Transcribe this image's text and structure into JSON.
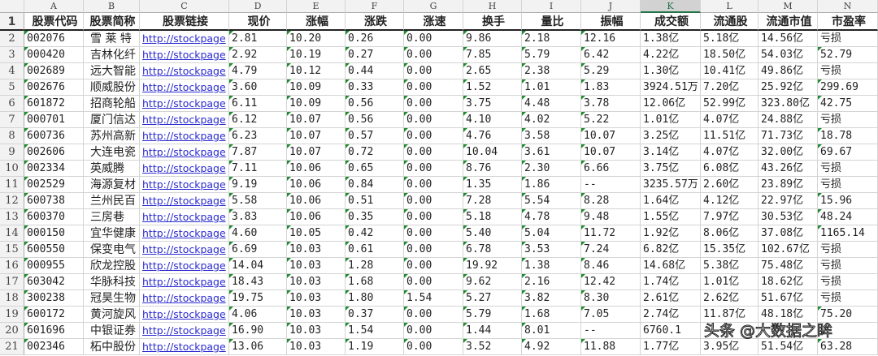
{
  "columns": [
    "A",
    "B",
    "C",
    "D",
    "E",
    "F",
    "G",
    "H",
    "I",
    "J",
    "K",
    "L",
    "M",
    "N"
  ],
  "selected_column": "K",
  "headers": [
    "股票代码",
    "股票简称",
    "股票链接",
    "现价",
    "涨幅",
    "涨跌",
    "涨速",
    "换手",
    "量比",
    "振幅",
    "成交额",
    "流通股",
    "流通市值",
    "市盈率"
  ],
  "rows": [
    [
      "002076",
      "雪 莱 特",
      "http://stockpage",
      "2.81",
      "10.20",
      "0.26",
      "0.00",
      "9.86",
      "2.18",
      "12.16",
      "1.38亿",
      "5.18亿",
      "14.56亿",
      "亏损"
    ],
    [
      "000420",
      "吉林化纤",
      "http://stockpage",
      "2.92",
      "10.19",
      "0.27",
      "0.00",
      "7.85",
      "5.79",
      "6.42",
      "4.22亿",
      "18.50亿",
      "54.03亿",
      "52.79"
    ],
    [
      "002689",
      "远大智能",
      "http://stockpage",
      "4.79",
      "10.12",
      "0.44",
      "0.00",
      "2.65",
      "2.38",
      "5.29",
      "1.30亿",
      "10.41亿",
      "49.86亿",
      "亏损"
    ],
    [
      "002676",
      "顺威股份",
      "http://stockpage",
      "3.60",
      "10.09",
      "0.33",
      "0.00",
      "1.52",
      "1.01",
      "1.83",
      "3924.51万",
      "7.20亿",
      "25.92亿",
      "299.69"
    ],
    [
      "601872",
      "招商轮船",
      "http://stockpage",
      "6.11",
      "10.09",
      "0.56",
      "0.00",
      "3.75",
      "4.48",
      "3.78",
      "12.06亿",
      "52.99亿",
      "323.80亿",
      "42.75"
    ],
    [
      "000701",
      "厦门信达",
      "http://stockpage",
      "6.12",
      "10.07",
      "0.56",
      "0.00",
      "4.10",
      "4.02",
      "5.22",
      "1.01亿",
      "4.07亿",
      "24.88亿",
      "亏损"
    ],
    [
      "600736",
      "苏州高新",
      "http://stockpage",
      "6.23",
      "10.07",
      "0.57",
      "0.00",
      "4.76",
      "3.58",
      "10.07",
      "3.25亿",
      "11.51亿",
      "71.73亿",
      "18.78"
    ],
    [
      "002606",
      "大连电瓷",
      "http://stockpage",
      "7.87",
      "10.07",
      "0.72",
      "0.00",
      "10.04",
      "3.61",
      "10.07",
      "3.14亿",
      "4.07亿",
      "32.00亿",
      "69.67"
    ],
    [
      "002334",
      "英威腾",
      "http://stockpage",
      "7.11",
      "10.06",
      "0.65",
      "0.00",
      "8.76",
      "2.30",
      "6.66",
      "3.75亿",
      "6.08亿",
      "43.26亿",
      "亏损"
    ],
    [
      "002529",
      "海源复材",
      "http://stockpage",
      "9.19",
      "10.06",
      "0.84",
      "0.00",
      "1.35",
      "1.86",
      "--",
      "3235.57万",
      "2.60亿",
      "23.89亿",
      "亏损"
    ],
    [
      "600738",
      "兰州民百",
      "http://stockpage",
      "5.58",
      "10.06",
      "0.51",
      "0.00",
      "7.28",
      "5.54",
      "8.28",
      "1.64亿",
      "4.12亿",
      "22.97亿",
      "15.96"
    ],
    [
      "600370",
      "三房巷",
      "http://stockpage",
      "3.83",
      "10.06",
      "0.35",
      "0.00",
      "5.18",
      "4.78",
      "9.48",
      "1.55亿",
      "7.97亿",
      "30.53亿",
      "48.24"
    ],
    [
      "000150",
      "宜华健康",
      "http://stockpage",
      "4.60",
      "10.05",
      "0.42",
      "0.00",
      "5.40",
      "5.04",
      "11.72",
      "1.92亿",
      "8.06亿",
      "37.08亿",
      "1165.14"
    ],
    [
      "600550",
      "保变电气",
      "http://stockpage",
      "6.69",
      "10.03",
      "0.61",
      "0.00",
      "6.78",
      "3.53",
      "7.24",
      "6.82亿",
      "15.35亿",
      "102.67亿",
      "亏损"
    ],
    [
      "000955",
      "欣龙控股",
      "http://stockpage",
      "14.04",
      "10.03",
      "1.28",
      "0.00",
      "19.92",
      "1.38",
      "8.46",
      "14.68亿",
      "5.38亿",
      "75.48亿",
      "亏损"
    ],
    [
      "603042",
      "华脉科技",
      "http://stockpage",
      "18.43",
      "10.03",
      "1.68",
      "0.00",
      "9.62",
      "2.16",
      "12.42",
      "1.74亿",
      "1.01亿",
      "18.62亿",
      "亏损"
    ],
    [
      "300238",
      "冠昊生物",
      "http://stockpage",
      "19.75",
      "10.03",
      "1.80",
      "1.54",
      "5.27",
      "3.82",
      "8.30",
      "2.61亿",
      "2.62亿",
      "51.67亿",
      "亏损"
    ],
    [
      "600172",
      "黄河旋风",
      "http://stockpage",
      "4.06",
      "10.03",
      "0.37",
      "0.00",
      "5.79",
      "1.68",
      "7.05",
      "2.74亿",
      "11.87亿",
      "48.18亿",
      "75.20"
    ],
    [
      "601696",
      "中银证券",
      "http://stockpage",
      "16.90",
      "10.03",
      "1.54",
      "0.00",
      "1.44",
      "8.01",
      "--",
      "6760.1",
      "",
      "",
      ""
    ],
    [
      "002346",
      "柘中股份",
      "http://stockpage",
      "13.06",
      "10.03",
      "1.19",
      "0.00",
      "3.52",
      "4.92",
      "11.88",
      "1.77亿",
      "3.95亿",
      "51.54亿",
      "63.28"
    ]
  ],
  "watermark": "头条 @大数据之眸"
}
